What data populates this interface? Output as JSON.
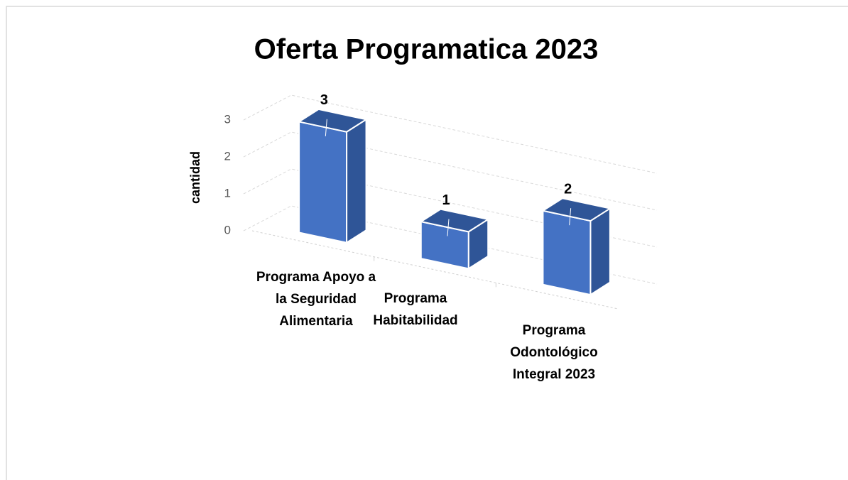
{
  "chart_data": {
    "type": "bar3d",
    "title": "Oferta Programatica 2023",
    "y_label": "cantidad",
    "categories": [
      "Programa Apoyo a la Seguridad Alimentaria",
      "Programa Habitabilidad",
      "Programa Odontológico Integral 2023"
    ],
    "values": [
      3,
      1,
      2
    ],
    "color": "#4472c4",
    "ylim": [
      0,
      3
    ],
    "yticks": [
      0,
      1,
      2,
      3
    ],
    "grid": true
  }
}
